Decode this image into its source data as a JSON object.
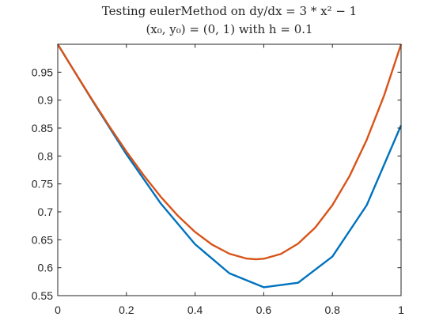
{
  "chart_data": {
    "type": "line",
    "title_line1": "Testing eulerMethod on dy/dx = 3 * x² − 1",
    "title_line2": "(x₀, y₀) = (0, 1) with h = 0.1",
    "xlabel": "",
    "ylabel": "",
    "xlim": [
      0,
      1
    ],
    "ylim": [
      0.55,
      1.0
    ],
    "xticks": [
      0,
      0.2,
      0.4,
      0.6,
      0.8,
      1
    ],
    "xtick_labels": [
      "0",
      "0.2",
      "0.4",
      "0.6",
      "0.8",
      "1"
    ],
    "yticks": [
      0.55,
      0.6,
      0.65,
      0.7,
      0.75,
      0.8,
      0.85,
      0.9,
      0.95
    ],
    "ytick_labels": [
      "0.55",
      "0.6",
      "0.65",
      "0.7",
      "0.75",
      "0.8",
      "0.85",
      "0.9",
      "0.95"
    ],
    "grid": false,
    "series": [
      {
        "color": "#0072BD",
        "x": [
          0,
          0.1,
          0.2,
          0.3,
          0.4,
          0.5,
          0.6,
          0.7,
          0.8,
          0.9,
          1.0
        ],
        "y": [
          1.0,
          0.9,
          0.803,
          0.715,
          0.642,
          0.59,
          0.565,
          0.573,
          0.62,
          0.712,
          0.855
        ]
      },
      {
        "color": "#D95319",
        "x": [
          0,
          0.05,
          0.1,
          0.15,
          0.2,
          0.25,
          0.3,
          0.35,
          0.4,
          0.45,
          0.5,
          0.55,
          0.5774,
          0.6,
          0.65,
          0.7,
          0.75,
          0.8,
          0.85,
          0.9,
          0.95,
          1.0
        ],
        "y": [
          1.0,
          0.950125,
          0.901,
          0.853375,
          0.808,
          0.765625,
          0.727,
          0.692875,
          0.664,
          0.641125,
          0.625,
          0.616375,
          0.6151,
          0.616,
          0.624625,
          0.643,
          0.671875,
          0.712,
          0.764125,
          0.829,
          0.907375,
          1.0
        ]
      }
    ]
  }
}
